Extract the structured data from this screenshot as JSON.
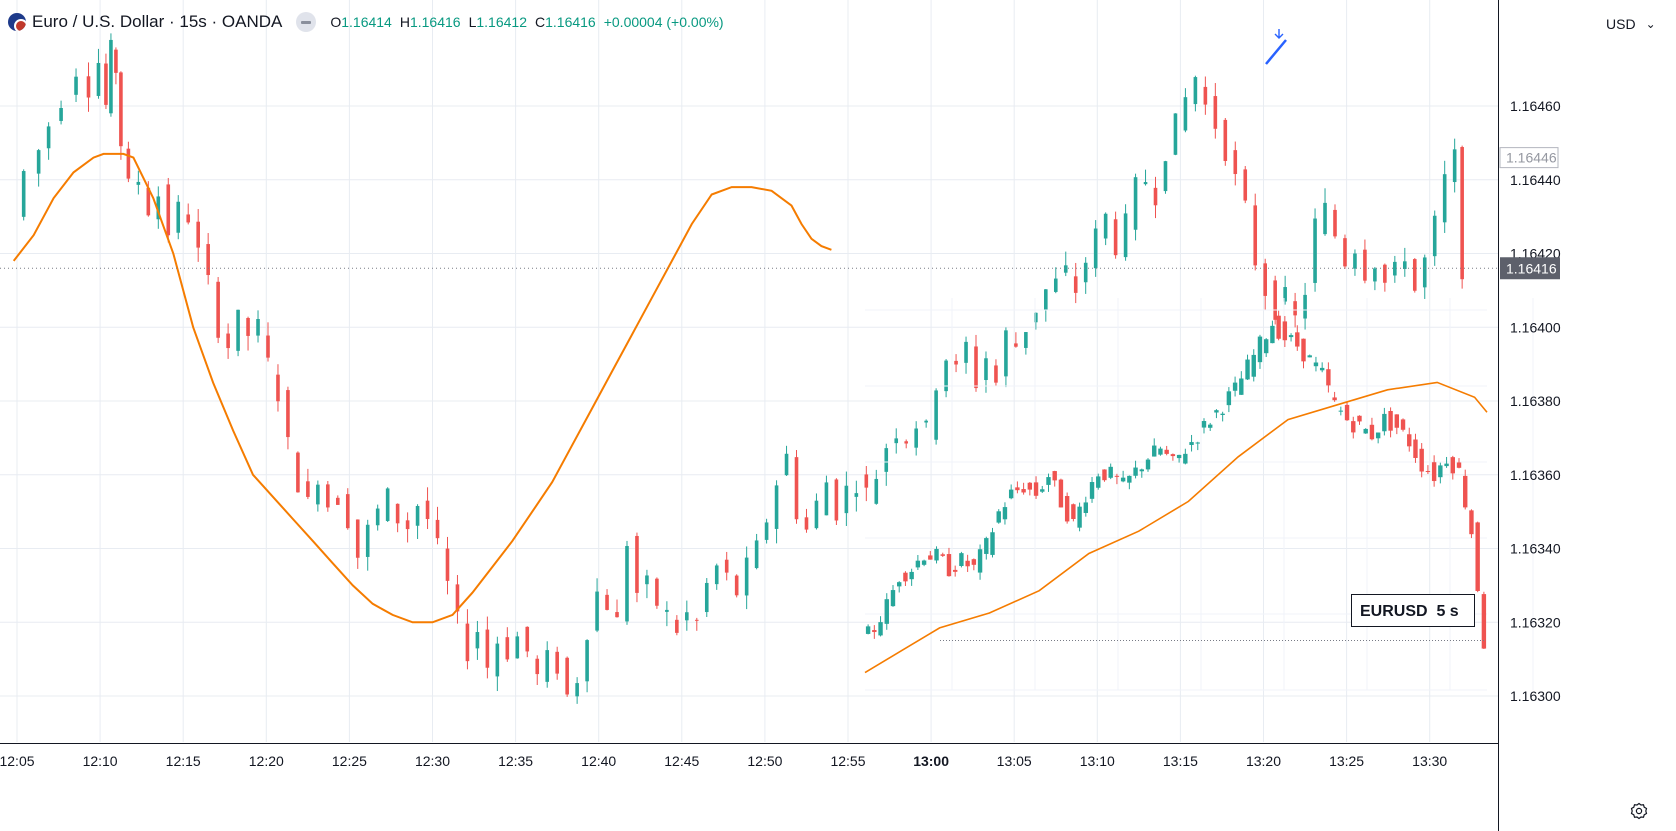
{
  "header": {
    "symbol_title": "Euro / U.S. Dollar · 15s · OANDA",
    "ohlc": [
      {
        "label": "O",
        "value": "1.16414"
      },
      {
        "label": "H",
        "value": "1.16416"
      },
      {
        "label": "L",
        "value": "1.16412"
      },
      {
        "label": "C",
        "value": "1.16416"
      }
    ],
    "change": "+0.00004 (+0.00%)"
  },
  "currency_button": {
    "label": "USD"
  },
  "colors": {
    "up": "#26a69a",
    "down": "#ef5350",
    "ma": "#f57c00",
    "grid": "#e8ecf2",
    "axis_text": "#131722",
    "price_label_bg": "#5d606b",
    "last_price_line": "#787b86",
    "arrow": "#2962ff"
  },
  "chart_data": [
    {
      "type": "candlestick",
      "series": [
        {
          "name": "Euro / U.S. Dollar · 15s · OANDA",
          "kind": "candles"
        },
        {
          "kind": "moving-average"
        }
      ],
      "x_ticks": [
        "12:05",
        "12:10",
        "12:15",
        "12:20",
        "12:25",
        "12:30",
        "12:35",
        "12:40",
        "12:45",
        "12:50",
        "12:55",
        "13:00",
        "13:05",
        "13:10",
        "13:15",
        "13:20",
        "13:25",
        "13:30"
      ],
      "y_ticks": [
        "1.16460",
        "1.16440",
        "1.16420",
        "1.16400",
        "1.16380",
        "1.16360",
        "1.16340",
        "1.16320",
        "1.16300"
      ],
      "ylim": [
        1.16288,
        1.1649
      ],
      "xlim_minutes": [
        12.08,
        13.56
      ],
      "current_price_label": "1.16416",
      "secondary_price_label": "1.16446",
      "close_path": [
        [
          12.08,
          1.1643
        ],
        [
          12.1,
          1.16442
        ],
        [
          12.11,
          1.16448
        ],
        [
          12.12,
          1.16455
        ],
        [
          12.135,
          1.16462
        ],
        [
          12.15,
          1.1647
        ],
        [
          12.16,
          1.16465
        ],
        [
          12.17,
          1.16472
        ],
        [
          12.175,
          1.1646
        ],
        [
          12.18,
          1.16475
        ],
        [
          12.185,
          1.1647
        ],
        [
          12.19,
          1.1645
        ],
        [
          12.2,
          1.16438
        ],
        [
          12.21,
          1.1644
        ],
        [
          12.22,
          1.16432
        ],
        [
          12.23,
          1.16436
        ],
        [
          12.24,
          1.16426
        ],
        [
          12.25,
          1.16432
        ],
        [
          12.26,
          1.1643
        ],
        [
          12.27,
          1.1642
        ],
        [
          12.28,
          1.16412
        ],
        [
          12.29,
          1.164
        ],
        [
          12.3,
          1.16395
        ],
        [
          12.31,
          1.16402
        ],
        [
          12.32,
          1.16398
        ],
        [
          12.33,
          1.164
        ],
        [
          12.34,
          1.1639
        ],
        [
          12.35,
          1.16382
        ],
        [
          12.36,
          1.16368
        ],
        [
          12.37,
          1.16358
        ],
        [
          12.38,
          1.16352
        ],
        [
          12.39,
          1.1636
        ],
        [
          12.4,
          1.16352
        ],
        [
          12.41,
          1.16354
        ],
        [
          12.42,
          1.16348
        ],
        [
          12.43,
          1.16338
        ],
        [
          12.44,
          1.16345
        ],
        [
          12.45,
          1.1635
        ],
        [
          12.46,
          1.16354
        ],
        [
          12.47,
          1.16348
        ],
        [
          12.48,
          1.16346
        ],
        [
          12.49,
          1.16352
        ],
        [
          12.5,
          1.16348
        ],
        [
          12.51,
          1.1634
        ],
        [
          12.52,
          1.1633
        ],
        [
          12.53,
          1.1632
        ],
        [
          12.54,
          1.16312
        ],
        [
          12.55,
          1.16318
        ],
        [
          12.56,
          1.16308
        ],
        [
          12.57,
          1.16315
        ],
        [
          12.58,
          1.16312
        ],
        [
          12.59,
          1.16316
        ],
        [
          12.6,
          1.16312
        ],
        [
          12.61,
          1.16305
        ],
        [
          12.62,
          1.1631
        ],
        [
          12.63,
          1.16308
        ],
        [
          12.64,
          1.163
        ],
        [
          12.65,
          1.16305
        ],
        [
          12.66,
          1.16318
        ],
        [
          12.67,
          1.16328
        ],
        [
          12.68,
          1.16325
        ],
        [
          12.69,
          1.1632
        ],
        [
          12.7,
          1.16342
        ],
        [
          12.71,
          1.16328
        ],
        [
          12.72,
          1.1633
        ],
        [
          12.73,
          1.16325
        ],
        [
          12.74,
          1.16322
        ],
        [
          12.75,
          1.16318
        ],
        [
          12.76,
          1.16322
        ],
        [
          12.77,
          1.1632
        ],
        [
          12.78,
          1.1633
        ],
        [
          12.79,
          1.16335
        ],
        [
          12.8,
          1.16332
        ],
        [
          12.81,
          1.16328
        ],
        [
          12.82,
          1.16335
        ],
        [
          12.83,
          1.1634
        ],
        [
          12.84,
          1.16348
        ],
        [
          12.85,
          1.16358
        ],
        [
          12.86,
          1.16365
        ],
        [
          12.87,
          1.1635
        ],
        [
          12.88,
          1.16345
        ],
        [
          12.89,
          1.16352
        ],
        [
          12.9,
          1.16358
        ],
        [
          12.91,
          1.1635
        ],
        [
          12.92,
          1.16356
        ],
        [
          12.93,
          1.16358
        ],
        [
          12.94,
          1.16355
        ],
        [
          12.95,
          1.1636
        ],
        [
          12.96,
          1.16368
        ],
        [
          12.97,
          1.16372
        ],
        [
          12.98,
          1.1637
        ],
        [
          12.99,
          1.16374
        ],
        [
          13.0,
          1.16372
        ],
        [
          13.01,
          1.16385
        ],
        [
          13.02,
          1.16392
        ],
        [
          13.03,
          1.16388
        ],
        [
          13.04,
          1.16395
        ],
        [
          13.05,
          1.16385
        ],
        [
          13.06,
          1.16392
        ],
        [
          13.07,
          1.16385
        ],
        [
          13.08,
          1.16398
        ],
        [
          13.09,
          1.16395
        ],
        [
          13.1,
          1.164
        ],
        [
          13.11,
          1.16405
        ],
        [
          13.12,
          1.1641
        ],
        [
          13.13,
          1.16412
        ],
        [
          13.14,
          1.16415
        ],
        [
          13.15,
          1.1641
        ],
        [
          13.16,
          1.16418
        ],
        [
          13.17,
          1.16425
        ],
        [
          13.18,
          1.1643
        ],
        [
          13.19,
          1.16422
        ],
        [
          13.2,
          1.16428
        ],
        [
          13.21,
          1.16438
        ],
        [
          13.22,
          1.1644
        ],
        [
          13.23,
          1.16436
        ],
        [
          13.24,
          1.16448
        ],
        [
          13.25,
          1.16455
        ],
        [
          13.26,
          1.16462
        ],
        [
          13.27,
          1.16468
        ],
        [
          13.28,
          1.1646
        ],
        [
          13.29,
          1.16455
        ],
        [
          13.3,
          1.16448
        ],
        [
          13.31,
          1.1644
        ],
        [
          13.32,
          1.16432
        ],
        [
          13.33,
          1.16418
        ],
        [
          13.34,
          1.1641
        ],
        [
          13.35,
          1.16405
        ],
        [
          13.36,
          1.16408
        ],
        [
          13.37,
          1.16402
        ],
        [
          13.38,
          1.1641
        ],
        [
          13.39,
          1.16428
        ],
        [
          13.4,
          1.16432
        ],
        [
          13.41,
          1.16425
        ],
        [
          13.42,
          1.16418
        ],
        [
          13.43,
          1.16422
        ],
        [
          13.44,
          1.16415
        ],
        [
          13.45,
          1.16418
        ],
        [
          13.46,
          1.16412
        ],
        [
          13.47,
          1.16415
        ],
        [
          13.48,
          1.1642
        ],
        [
          13.49,
          1.1641
        ],
        [
          13.5,
          1.16418
        ],
        [
          13.51,
          1.16428
        ],
        [
          13.52,
          1.1644
        ],
        [
          13.53,
          1.16446
        ],
        [
          13.535,
          1.16416
        ]
      ],
      "ma_path": [
        [
          12.08,
          1.16418
        ],
        [
          12.1,
          1.16425
        ],
        [
          12.12,
          1.16435
        ],
        [
          12.14,
          1.16442
        ],
        [
          12.16,
          1.16446
        ],
        [
          12.17,
          1.16447
        ],
        [
          12.19,
          1.16447
        ],
        [
          12.2,
          1.16446
        ],
        [
          12.22,
          1.16435
        ],
        [
          12.24,
          1.1642
        ],
        [
          12.26,
          1.164
        ],
        [
          12.28,
          1.16385
        ],
        [
          12.3,
          1.16372
        ],
        [
          12.32,
          1.1636
        ],
        [
          12.34,
          1.16354
        ],
        [
          12.36,
          1.16348
        ],
        [
          12.38,
          1.16342
        ],
        [
          12.4,
          1.16336
        ],
        [
          12.42,
          1.1633
        ],
        [
          12.44,
          1.16325
        ],
        [
          12.46,
          1.16322
        ],
        [
          12.48,
          1.1632
        ],
        [
          12.5,
          1.1632
        ],
        [
          12.52,
          1.16322
        ],
        [
          12.54,
          1.16328
        ],
        [
          12.56,
          1.16335
        ],
        [
          12.58,
          1.16342
        ],
        [
          12.6,
          1.1635
        ],
        [
          12.62,
          1.16358
        ],
        [
          12.64,
          1.16368
        ],
        [
          12.66,
          1.16378
        ],
        [
          12.68,
          1.16388
        ],
        [
          12.7,
          1.16398
        ],
        [
          12.72,
          1.16408
        ],
        [
          12.74,
          1.16418
        ],
        [
          12.76,
          1.16428
        ],
        [
          12.78,
          1.16436
        ],
        [
          12.8,
          1.16438
        ],
        [
          12.82,
          1.16438
        ],
        [
          12.84,
          1.16437
        ],
        [
          12.86,
          1.16433
        ],
        [
          12.87,
          1.16428
        ],
        [
          12.88,
          1.16424
        ],
        [
          12.89,
          1.16422
        ],
        [
          12.9,
          1.16421
        ]
      ]
    },
    {
      "type": "candlestick",
      "name": "EURUSD  5 s",
      "series": [
        {
          "kind": "candles"
        },
        {
          "kind": "moving-average"
        }
      ],
      "note": "overlaid comparison chart (lower-right region)",
      "close_path": [
        [
          0.0,
          0.1
        ],
        [
          0.02,
          0.14
        ],
        [
          0.04,
          0.2
        ],
        [
          0.06,
          0.28
        ],
        [
          0.08,
          0.3
        ],
        [
          0.1,
          0.34
        ],
        [
          0.12,
          0.33
        ],
        [
          0.14,
          0.3
        ],
        [
          0.16,
          0.32
        ],
        [
          0.18,
          0.3
        ],
        [
          0.2,
          0.36
        ],
        [
          0.22,
          0.45
        ],
        [
          0.24,
          0.5
        ],
        [
          0.26,
          0.52
        ],
        [
          0.28,
          0.5
        ],
        [
          0.3,
          0.55
        ],
        [
          0.32,
          0.48
        ],
        [
          0.34,
          0.42
        ],
        [
          0.36,
          0.5
        ],
        [
          0.38,
          0.56
        ],
        [
          0.4,
          0.55
        ],
        [
          0.42,
          0.52
        ],
        [
          0.44,
          0.56
        ],
        [
          0.46,
          0.6
        ],
        [
          0.48,
          0.62
        ],
        [
          0.5,
          0.58
        ],
        [
          0.52,
          0.62
        ],
        [
          0.54,
          0.66
        ],
        [
          0.56,
          0.7
        ],
        [
          0.58,
          0.74
        ],
        [
          0.6,
          0.78
        ],
        [
          0.62,
          0.84
        ],
        [
          0.64,
          0.9
        ],
        [
          0.66,
          0.96
        ],
        [
          0.68,
          0.92
        ],
        [
          0.7,
          0.9
        ],
        [
          0.72,
          0.86
        ],
        [
          0.74,
          0.82
        ],
        [
          0.76,
          0.74
        ],
        [
          0.78,
          0.7
        ],
        [
          0.8,
          0.68
        ],
        [
          0.82,
          0.66
        ],
        [
          0.84,
          0.7
        ],
        [
          0.86,
          0.68
        ],
        [
          0.88,
          0.64
        ],
        [
          0.9,
          0.58
        ],
        [
          0.92,
          0.55
        ],
        [
          0.94,
          0.6
        ],
        [
          0.96,
          0.56
        ],
        [
          0.98,
          0.4
        ],
        [
          1.0,
          0.1
        ]
      ],
      "ma_path": [
        [
          0.0,
          0.02
        ],
        [
          0.06,
          0.08
        ],
        [
          0.12,
          0.14
        ],
        [
          0.2,
          0.18
        ],
        [
          0.28,
          0.24
        ],
        [
          0.36,
          0.34
        ],
        [
          0.44,
          0.4
        ],
        [
          0.52,
          0.48
        ],
        [
          0.6,
          0.6
        ],
        [
          0.68,
          0.7
        ],
        [
          0.76,
          0.74
        ],
        [
          0.84,
          0.78
        ],
        [
          0.92,
          0.8
        ],
        [
          0.98,
          0.76
        ],
        [
          1.0,
          0.72
        ]
      ]
    }
  ],
  "annotations": {
    "comparison_label": "EURUSD  5 s",
    "comparison_label_symbol": "EURUSD",
    "comparison_label_interval": "5 s"
  }
}
